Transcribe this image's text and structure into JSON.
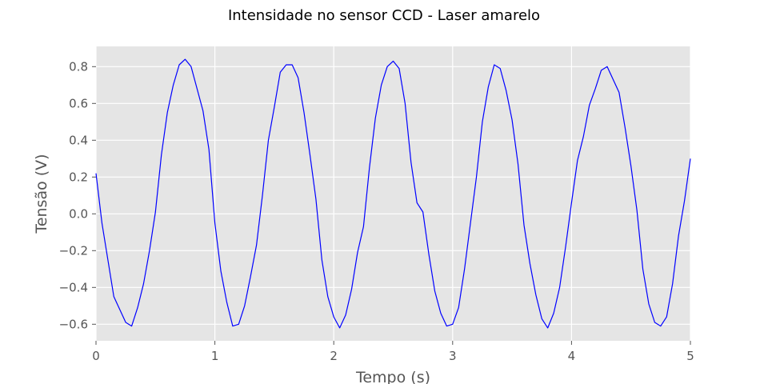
{
  "chart_data": {
    "type": "line",
    "title": "Intensidade no sensor CCD - Laser amarelo",
    "xlabel": "Tempo (s)",
    "ylabel": "Tensão (V)",
    "xlim": [
      0,
      5
    ],
    "ylim": [
      -0.69,
      0.91
    ],
    "grid": true,
    "xticks": [
      0,
      1,
      2,
      3,
      4,
      5
    ],
    "xtick_labels": [
      "0",
      "1",
      "2",
      "3",
      "4",
      "5"
    ],
    "yticks": [
      -0.6,
      -0.4,
      -0.2,
      0.0,
      0.2,
      0.4,
      0.6,
      0.8
    ],
    "ytick_labels": [
      "−0.6",
      "−0.4",
      "−0.2",
      "0.0",
      "0.2",
      "0.4",
      "0.6",
      "0.8"
    ],
    "colors": {
      "line": "#0000ff",
      "plot_bg": "#e5e5e5",
      "grid": "#ffffff"
    },
    "series": [
      {
        "x": [
          0.0,
          0.05,
          0.1,
          0.15,
          0.2,
          0.25,
          0.3,
          0.35,
          0.4,
          0.45,
          0.5,
          0.55,
          0.6,
          0.65,
          0.7,
          0.75,
          0.8,
          0.85,
          0.9,
          0.95,
          1.0,
          1.05,
          1.1,
          1.15,
          1.2,
          1.25,
          1.3,
          1.35,
          1.4,
          1.45,
          1.5,
          1.55,
          1.6,
          1.65,
          1.7,
          1.75,
          1.8,
          1.85,
          1.9,
          1.95,
          2.0,
          2.05,
          2.1,
          2.15,
          2.2,
          2.25,
          2.3,
          2.35,
          2.4,
          2.45,
          2.5,
          2.55,
          2.6,
          2.65,
          2.7,
          2.75,
          2.8,
          2.85,
          2.9,
          2.95,
          3.0,
          3.05,
          3.1,
          3.15,
          3.2,
          3.25,
          3.3,
          3.35,
          3.4,
          3.45,
          3.5,
          3.55,
          3.6,
          3.65,
          3.7,
          3.75,
          3.8,
          3.85,
          3.9,
          3.95,
          4.0,
          4.05,
          4.1,
          4.15,
          4.2,
          4.25,
          4.3,
          4.35,
          4.4,
          4.45,
          4.5,
          4.55,
          4.6,
          4.65,
          4.7,
          4.75,
          4.8,
          4.85,
          4.9,
          4.95,
          5.0
        ],
        "y": [
          0.22,
          -0.05,
          -0.25,
          -0.45,
          -0.52,
          -0.59,
          -0.61,
          -0.51,
          -0.38,
          -0.2,
          0.01,
          0.32,
          0.55,
          0.7,
          0.81,
          0.84,
          0.8,
          0.68,
          0.56,
          0.35,
          -0.05,
          -0.31,
          -0.48,
          -0.61,
          -0.6,
          -0.5,
          -0.34,
          -0.17,
          0.1,
          0.4,
          0.58,
          0.77,
          0.81,
          0.81,
          0.74,
          0.55,
          0.32,
          0.08,
          -0.25,
          -0.45,
          -0.56,
          -0.62,
          -0.55,
          -0.41,
          -0.21,
          -0.07,
          0.25,
          0.52,
          0.7,
          0.8,
          0.83,
          0.79,
          0.6,
          0.28,
          0.06,
          0.01,
          -0.22,
          -0.42,
          -0.54,
          -0.61,
          -0.6,
          -0.51,
          -0.3,
          -0.05,
          0.2,
          0.5,
          0.69,
          0.81,
          0.79,
          0.67,
          0.51,
          0.27,
          -0.06,
          -0.27,
          -0.44,
          -0.57,
          -0.62,
          -0.54,
          -0.4,
          -0.18,
          0.06,
          0.29,
          0.42,
          0.59,
          0.68,
          0.78,
          0.8,
          0.73,
          0.66,
          0.47,
          0.26,
          0.02,
          -0.3,
          -0.49,
          -0.59,
          -0.61,
          -0.56,
          -0.38,
          -0.12,
          0.07,
          0.3
        ]
      }
    ]
  }
}
